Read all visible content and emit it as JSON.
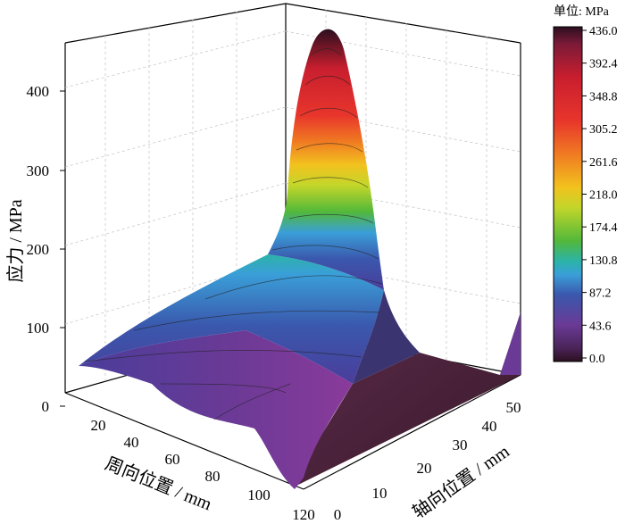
{
  "chart_data": {
    "type": "surface3d",
    "xlabel": "周向位置 / mm",
    "ylabel": "轴向位置 / mm",
    "zlabel": "应力 / MPa",
    "x_ticks": [
      "20",
      "40",
      "60",
      "80",
      "100",
      "120"
    ],
    "y_ticks": [
      "0",
      "10",
      "20",
      "30",
      "40",
      "50"
    ],
    "z_ticks": [
      "0",
      "100",
      "200",
      "300",
      "400"
    ],
    "xlim": [
      10,
      120
    ],
    "ylim": [
      0,
      55
    ],
    "zlim": [
      0,
      460
    ],
    "grid": true,
    "colorbar": {
      "title": "单位: MPa",
      "ticks": [
        "436.0",
        "392.4",
        "348.8",
        "305.2",
        "261.6",
        "218.0",
        "174.4",
        "130.8",
        "87.2",
        "43.6",
        "0.0"
      ],
      "min": 0,
      "max": 436,
      "colors": [
        "#2a0f1f",
        "#7a1a38",
        "#c81e2e",
        "#e8352c",
        "#f07a22",
        "#f2c21e",
        "#c2d62a",
        "#52b83a",
        "#2bb3a8",
        "#3a9fd8",
        "#3a58ad",
        "#4a3d9a",
        "#6a3a96",
        "#3a1a2a"
      ]
    },
    "peak": {
      "x": 120,
      "y": 25,
      "z": 436
    },
    "series": [
      {
        "name": "",
        "x": [
          10,
          30,
          50,
          70,
          90,
          110,
          120
        ],
        "y_at": 0,
        "values": [
          50,
          40,
          30,
          25,
          25,
          10,
          0
        ]
      },
      {
        "name": "",
        "x": [
          10,
          30,
          50,
          70,
          90,
          110,
          120
        ],
        "y_at": 10,
        "values": [
          80,
          90,
          110,
          140,
          180,
          260,
          250
        ]
      },
      {
        "name": "",
        "x": [
          10,
          30,
          50,
          70,
          90,
          110,
          120
        ],
        "y_at": 20,
        "values": [
          60,
          75,
          100,
          130,
          170,
          300,
          436
        ]
      },
      {
        "name": "",
        "x": [
          10,
          30,
          50,
          70,
          90,
          110,
          120
        ],
        "y_at": 30,
        "values": [
          40,
          40,
          45,
          50,
          60,
          80,
          120
        ]
      },
      {
        "name": "",
        "x": [
          10,
          30,
          50,
          70,
          90,
          110,
          120
        ],
        "y_at": 40,
        "values": [
          10,
          10,
          10,
          10,
          10,
          10,
          10
        ]
      },
      {
        "name": "",
        "x": [
          10,
          30,
          50,
          70,
          90,
          110,
          120
        ],
        "y_at": 55,
        "values": [
          5,
          5,
          5,
          5,
          5,
          10,
          80
        ]
      }
    ]
  }
}
